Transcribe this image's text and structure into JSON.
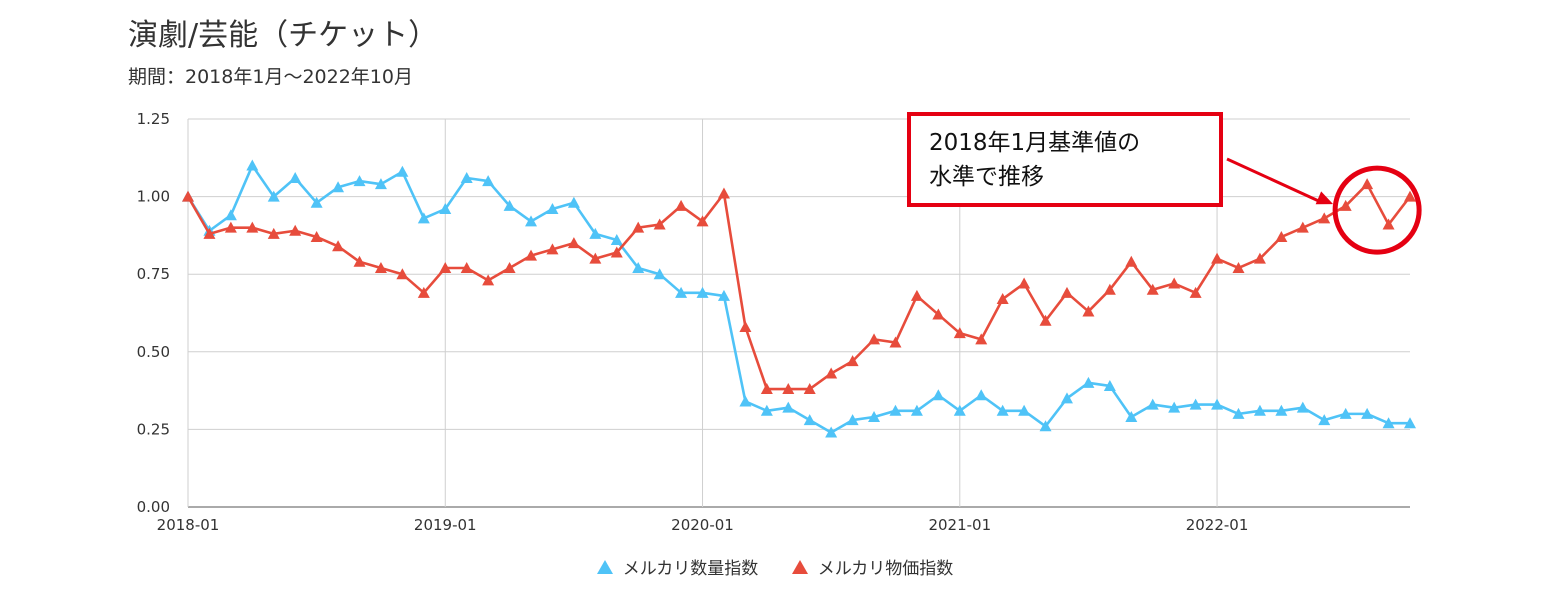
{
  "title": "演劇/芸能（チケット）",
  "subtitle": "期間：2018年1月～2022年10月",
  "annotation": {
    "line1": "2018年1月基準値の",
    "line2": "水準で推移",
    "color": "#e50012"
  },
  "chart_data": {
    "type": "line",
    "title": "演劇/芸能（チケット）",
    "subtitle": "期間：2018年1月～2022年10月",
    "xlabel": "",
    "ylabel": "",
    "ylim": [
      0,
      1.25
    ],
    "yticks": [
      "0.00",
      "0.25",
      "0.50",
      "0.75",
      "1.00",
      "1.25"
    ],
    "xtick_labels": [
      "2018-01",
      "2019-01",
      "2020-01",
      "2021-01",
      "2022-01"
    ],
    "x_start": "2018-01",
    "x_end": "2022-10",
    "grid": true,
    "legend_position": "bottom",
    "marker": "triangle",
    "series": [
      {
        "name": "メルカリ数量指数",
        "color": "#4fc3f7",
        "values": [
          1.0,
          0.89,
          0.94,
          1.1,
          1.0,
          1.06,
          0.98,
          1.03,
          1.05,
          1.04,
          1.08,
          0.93,
          0.96,
          1.06,
          1.05,
          0.97,
          0.92,
          0.96,
          0.98,
          0.88,
          0.86,
          0.77,
          0.75,
          0.69,
          0.69,
          0.68,
          0.34,
          0.31,
          0.32,
          0.28,
          0.24,
          0.28,
          0.29,
          0.31,
          0.31,
          0.36,
          0.31,
          0.36,
          0.31,
          0.31,
          0.26,
          0.35,
          0.4,
          0.39,
          0.29,
          0.33,
          0.32,
          0.33,
          0.33,
          0.3,
          0.31,
          0.31,
          0.32,
          0.28,
          0.3,
          0.3,
          0.27,
          0.27
        ]
      },
      {
        "name": "メルカリ物価指数",
        "color": "#e74c3c",
        "values": [
          1.0,
          0.88,
          0.9,
          0.9,
          0.88,
          0.89,
          0.87,
          0.84,
          0.79,
          0.77,
          0.75,
          0.69,
          0.77,
          0.77,
          0.73,
          0.77,
          0.81,
          0.83,
          0.85,
          0.8,
          0.82,
          0.9,
          0.91,
          0.97,
          0.92,
          1.01,
          0.58,
          0.38,
          0.38,
          0.38,
          0.43,
          0.47,
          0.54,
          0.53,
          0.68,
          0.62,
          0.56,
          0.54,
          0.67,
          0.72,
          0.6,
          0.69,
          0.63,
          0.7,
          0.79,
          0.7,
          0.72,
          0.69,
          0.8,
          0.77,
          0.8,
          0.87,
          0.9,
          0.93,
          0.97,
          1.04,
          0.91,
          1.0
        ]
      }
    ]
  }
}
